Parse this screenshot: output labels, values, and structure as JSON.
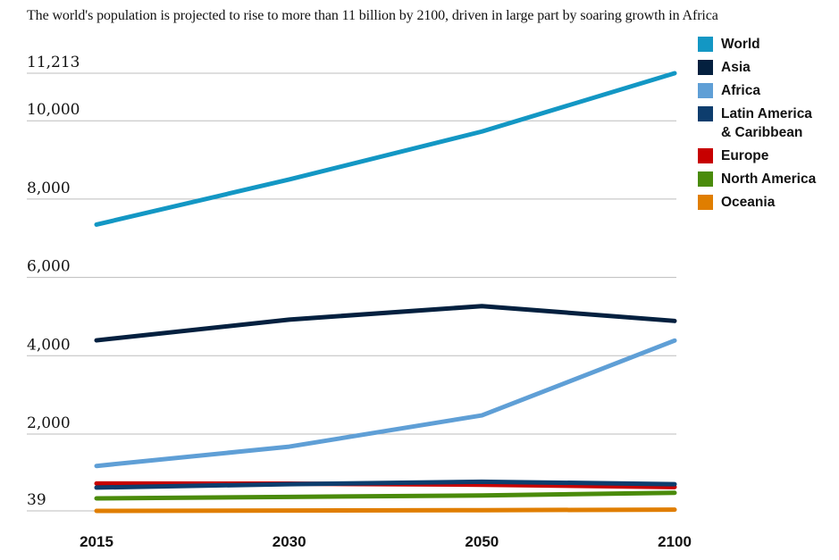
{
  "title": "The world's population is projected to rise to more than 11 billion by 2100, driven in large part by soaring growth in Africa",
  "chart_data": {
    "type": "line",
    "title": "The world's population is projected to rise to more than 11 billion by 2100, driven in large part by soaring growth in Africa",
    "x_categories": [
      "2015",
      "2030",
      "2050",
      "2100"
    ],
    "y_ticks": [
      {
        "value": 11213,
        "label": "11,213"
      },
      {
        "value": 10000,
        "label": "10,000"
      },
      {
        "value": 8000,
        "label": "8,000"
      },
      {
        "value": 6000,
        "label": "6,000"
      },
      {
        "value": 4000,
        "label": "4,000"
      },
      {
        "value": 2000,
        "label": "2,000"
      },
      {
        "value": 39,
        "label": "39"
      }
    ],
    "ylim": [
      39,
      11213
    ],
    "grid_on": true,
    "legend_position": "top-right",
    "grid_color": "#bdbdbd",
    "text_color": "#121212",
    "series": [
      {
        "name": "World",
        "color": "#1397c4",
        "legend_lines": [
          "World"
        ],
        "values": [
          7349,
          8501,
          9725,
          11213
        ]
      },
      {
        "name": "Asia",
        "color": "#04203f",
        "legend_lines": [
          "Asia"
        ],
        "values": [
          4393,
          4923,
          5267,
          4889
        ]
      },
      {
        "name": "Africa",
        "color": "#5f9fd6",
        "legend_lines": [
          "Africa"
        ],
        "values": [
          1186,
          1679,
          2478,
          4387
        ]
      },
      {
        "name": "Latin America & Caribbean",
        "color": "#0d3d6d",
        "legend_lines": [
          "Latin America",
          "& Caribbean"
        ],
        "values": [
          634,
          721,
          784,
          721
        ]
      },
      {
        "name": "Europe",
        "color": "#c70000",
        "legend_lines": [
          "Europe"
        ],
        "values": [
          738,
          734,
          707,
          646
        ]
      },
      {
        "name": "North America",
        "color": "#4a8b0b",
        "legend_lines": [
          "North America"
        ],
        "values": [
          358,
          396,
          433,
          500
        ]
      },
      {
        "name": "Oceania",
        "color": "#e07e00",
        "legend_lines": [
          "Oceania"
        ],
        "values": [
          39,
          47,
          57,
          71
        ]
      }
    ]
  }
}
